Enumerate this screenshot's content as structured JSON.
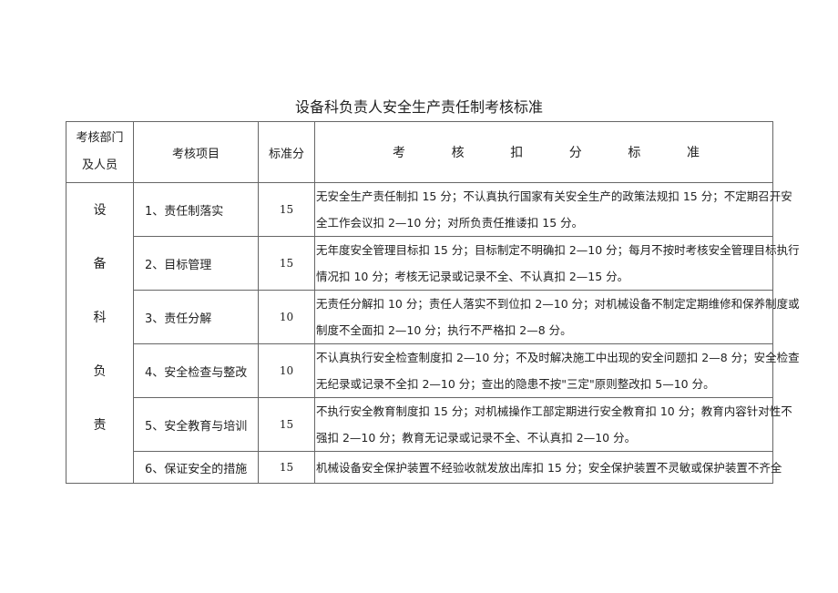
{
  "title": "设备科负责人安全生产责任制考核标准",
  "headers": {
    "dept": [
      "考核部门",
      "及人员"
    ],
    "item": "考核项目",
    "score": "标准分",
    "criteria_chars": [
      "考",
      "核",
      "扣",
      "分",
      "标",
      "准"
    ]
  },
  "dept_chars": [
    "设",
    "备",
    "科",
    "负",
    "责"
  ],
  "rows": [
    {
      "item": "1、责任制落实",
      "score": "15",
      "lines": [
        "无安全生产责任制扣 15 分；不认真执行国家有关安全生产的政策法规扣 15 分；不定期召开安",
        "全工作会议扣 2—10 分；对所负责任推诿扣 15 分。"
      ]
    },
    {
      "item": "2、目标管理",
      "score": "15",
      "lines": [
        "无年度安全管理目标扣 15 分；目标制定不明确扣 2—10 分；每月不按时考核安全管理目标执行",
        "情况扣 10 分；考核无记录或记录不全、不认真扣 2—15 分。"
      ]
    },
    {
      "item": "3、责任分解",
      "score": "10",
      "lines": [
        "无责任分解扣 10 分；责任人落实不到位扣 2—10 分；对机械设备不制定定期维修和保养制度或",
        "制度不全面扣 2—10 分；执行不严格扣 2—8 分。"
      ]
    },
    {
      "item": "4、安全检查与整改",
      "score": "10",
      "lines": [
        "不认真执行安全检查制度扣 2—10 分；不及时解决施工中出现的安全问题扣 2—8 分；安全检查",
        "无纪录或记录不全扣 2—10 分；查出的隐患不按\"三定\"原则整改扣 5—10 分。"
      ]
    },
    {
      "item": "5、安全教育与培训",
      "score": "15",
      "lines": [
        "不执行安全教育制度扣 15 分；对机械操作工部定期进行安全教育扣 10 分；教育内容针对性不",
        "强扣 2—10 分；教育无记录或记录不全、不认真扣 2—10 分。"
      ]
    },
    {
      "item": "6、保证安全的措施",
      "score": "15",
      "lines": [
        "机械设备安全保护装置不经验收就发放出库扣 15 分；安全保护装置不灵敏或保护装置不齐全"
      ]
    }
  ]
}
